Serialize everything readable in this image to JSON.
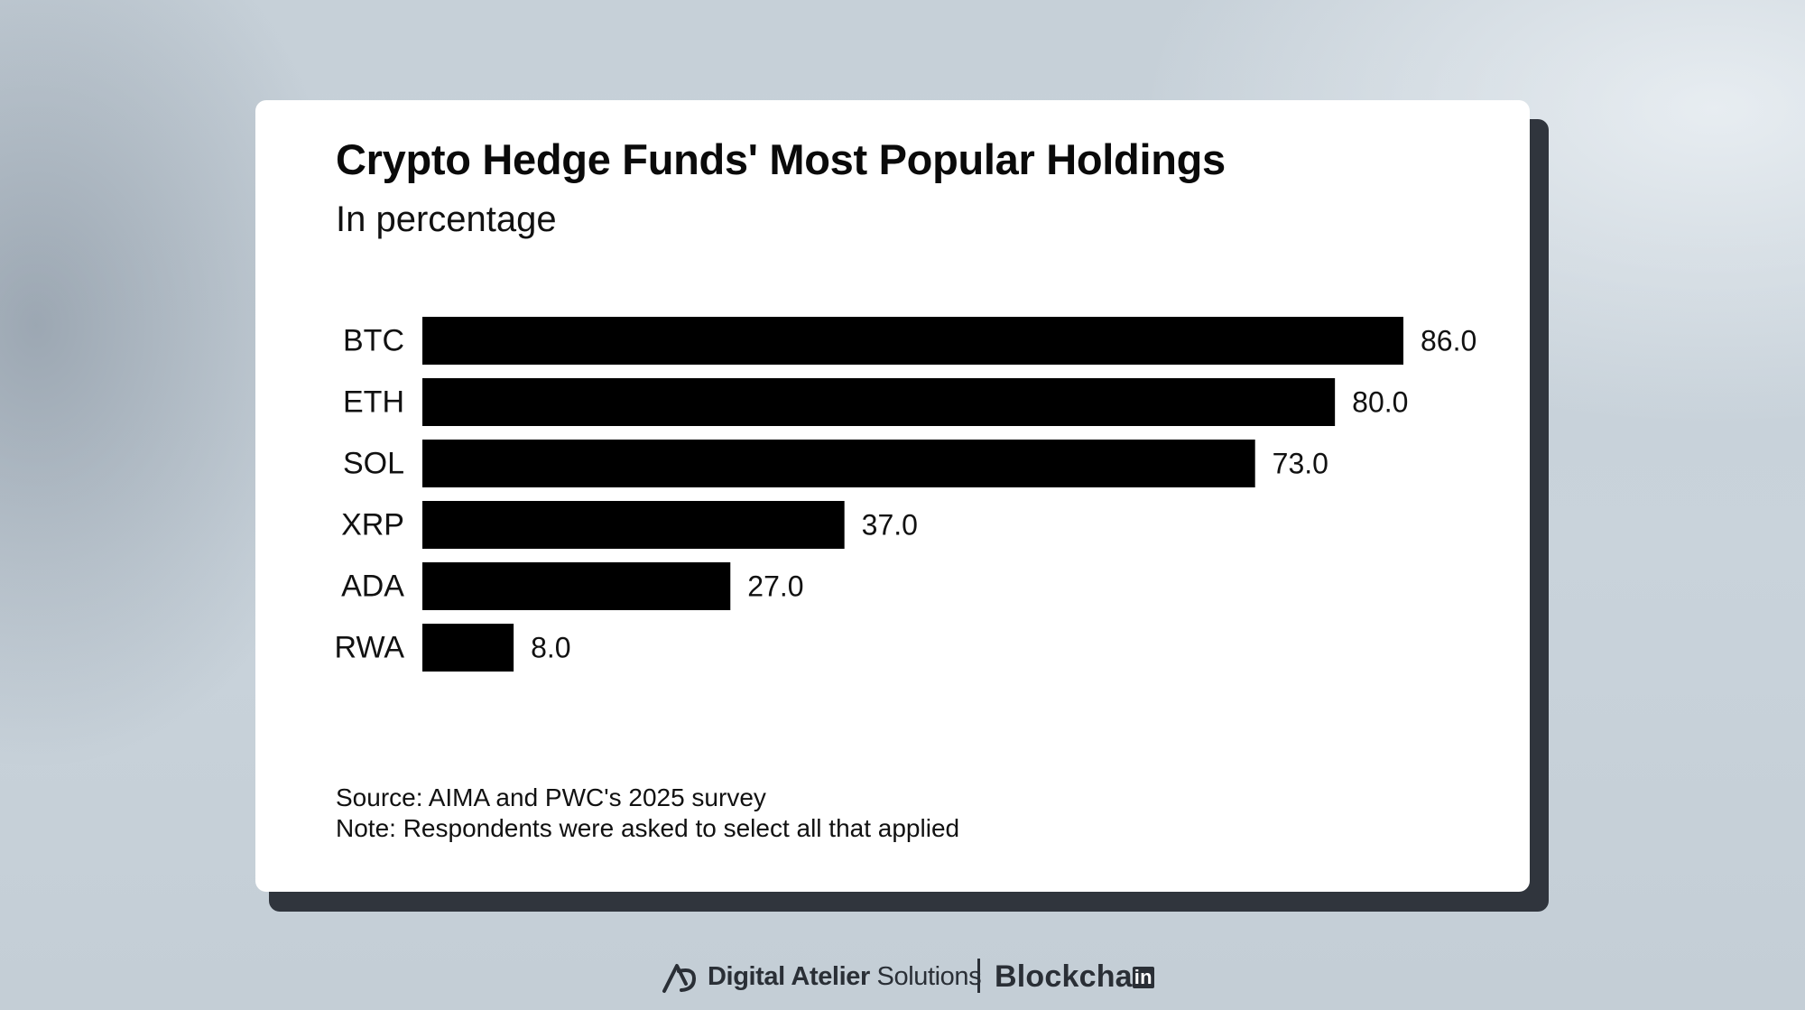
{
  "chart_data": {
    "type": "bar",
    "orientation": "horizontal",
    "title": "Crypto Hedge Funds' Most Popular Holdings",
    "subtitle": "In percentage",
    "categories": [
      "BTC",
      "ETH",
      "SOL",
      "XRP",
      "ADA",
      "RWA"
    ],
    "values": [
      86.0,
      80.0,
      73.0,
      37.0,
      27.0,
      8.0
    ],
    "value_labels": [
      "86.0",
      "80.0",
      "73.0",
      "37.0",
      "27.0",
      "8.0"
    ],
    "xlabel": "",
    "ylabel": "",
    "xlim": [
      0,
      86
    ],
    "grid": false,
    "bar_color": "#000000"
  },
  "notes": {
    "source": "Source: AIMA and PWC's 2025 survey",
    "note": "Note: Respondents were asked to select all that applied"
  },
  "footer": {
    "brand_left_strong": "Digital Atelier",
    "brand_left_light": "Solutions",
    "brand_right": "Blockcha",
    "brand_right_badge": "in"
  },
  "colors": {
    "card": "#ffffff",
    "card_shadow": "#30353d",
    "text": "#111111",
    "brand": "#2a2f36"
  }
}
